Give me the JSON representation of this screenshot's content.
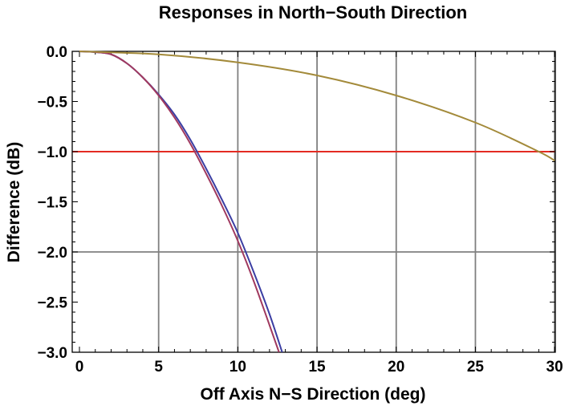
{
  "chart_data": {
    "type": "line",
    "title": "Responses in North−South Direction",
    "xlabel": "Off Axis N−S Direction (deg)",
    "ylabel": "Difference (dB)",
    "xlim": [
      0,
      30.5
    ],
    "ylim": [
      -3.0,
      0.0
    ],
    "x_ticks": [
      {
        "value": 0,
        "label": "0"
      },
      {
        "value": 5,
        "label": "5"
      },
      {
        "value": 10,
        "label": "10"
      },
      {
        "value": 15,
        "label": "15"
      },
      {
        "value": 20,
        "label": "20"
      },
      {
        "value": 25,
        "label": "25"
      },
      {
        "value": 30,
        "label": "30"
      }
    ],
    "y_ticks": [
      {
        "value": 0.0,
        "label": "0.0"
      },
      {
        "value": -0.5,
        "label": "−0.5"
      },
      {
        "value": -1.0,
        "label": "−1.0"
      },
      {
        "value": -1.5,
        "label": "−1.5"
      },
      {
        "value": -2.0,
        "label": "−2.0"
      },
      {
        "value": -2.5,
        "label": "−2.5"
      },
      {
        "value": -3.0,
        "label": "−3.0"
      }
    ],
    "grid": {
      "x": [
        5,
        10,
        15,
        20,
        25,
        30
      ],
      "y": [
        -2.0
      ],
      "color": "#808080"
    },
    "reference_line": {
      "y": -1.0,
      "color": "#e32b22"
    },
    "series": [
      {
        "color": "#3b3ea3",
        "x": [
          0,
          1,
          2,
          3,
          4,
          5,
          6,
          7,
          8,
          9,
          10,
          11,
          12,
          12.8
        ],
        "y": [
          0,
          -0.008,
          -0.03,
          -0.12,
          -0.26,
          -0.43,
          -0.63,
          -0.88,
          -1.17,
          -1.48,
          -1.81,
          -2.2,
          -2.62,
          -3.0
        ]
      },
      {
        "color": "#a0395f",
        "x": [
          0,
          1,
          2,
          3,
          4,
          5,
          6,
          7,
          8,
          9,
          10,
          11,
          12,
          12.6
        ],
        "y": [
          0,
          -0.008,
          -0.03,
          -0.12,
          -0.26,
          -0.44,
          -0.66,
          -0.92,
          -1.22,
          -1.54,
          -1.89,
          -2.29,
          -2.73,
          -3.0
        ]
      },
      {
        "color": "#a38a3a",
        "x": [
          0,
          5,
          10,
          15,
          20,
          25,
          29,
          30
        ],
        "y": [
          0,
          -0.03,
          -0.11,
          -0.24,
          -0.44,
          -0.71,
          -1.0,
          -1.09
        ]
      }
    ]
  }
}
